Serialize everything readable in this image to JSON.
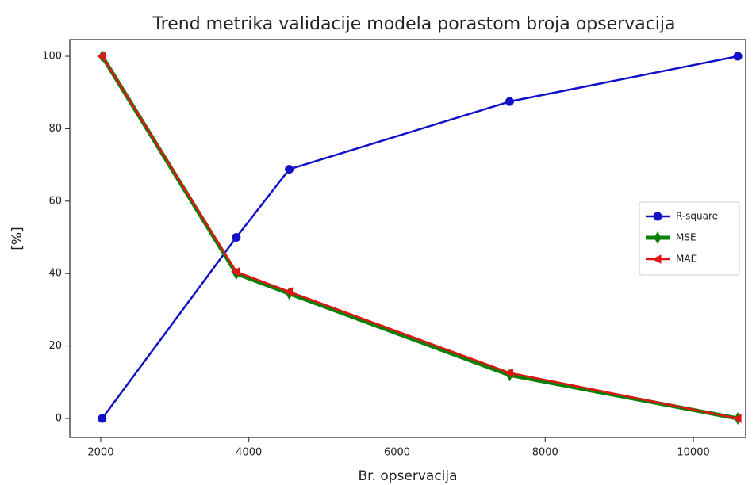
{
  "chart_data": {
    "type": "line",
    "title": "Trend metrika validacije modela porastom broja opservacija",
    "x_label": "Br. opservacija",
    "y_label": "[%]",
    "x": [
      2020,
      3830,
      4545,
      7520,
      10600
    ],
    "series": [
      {
        "name": "R-square",
        "color": "#1010c8",
        "marker": "circle",
        "linewidth": 2.5,
        "values": [
          0,
          50,
          68.8,
          87.5,
          100
        ]
      },
      {
        "name": "MSE",
        "color": "#0a800a",
        "marker": "diamond",
        "linewidth": 5,
        "values": [
          100,
          40,
          34.5,
          12,
          0
        ]
      },
      {
        "name": "MAE",
        "color": "#e01515",
        "marker": "triangle-left",
        "linewidth": 2.5,
        "values": [
          100,
          40.5,
          35,
          12.6,
          0
        ]
      }
    ],
    "xlim": [
      1583,
      10706
    ],
    "ylim": [
      -5.25,
      104.6
    ],
    "xticks": [
      2000,
      4000,
      6000,
      8000,
      10000
    ],
    "yticks": [
      0,
      20,
      40,
      60,
      80,
      100
    ],
    "legend": "right"
  }
}
